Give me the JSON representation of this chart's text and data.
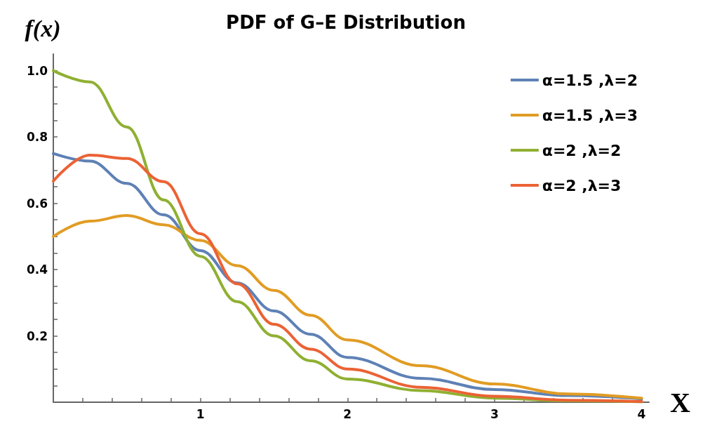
{
  "chart_data": {
    "type": "line",
    "title": "PDF of G–E Distribution",
    "xlabel": "X",
    "ylabel": "f(x)",
    "x": [
      0,
      0.25,
      0.5,
      0.75,
      1,
      1.25,
      1.5,
      1.75,
      2,
      2.5,
      3,
      3.5,
      4
    ],
    "series": [
      {
        "name": "α=1.5 ,λ=2",
        "color": "#5e81b5",
        "values": [
          0.75,
          0.727,
          0.66,
          0.565,
          0.457,
          0.36,
          0.275,
          0.205,
          0.135,
          0.072,
          0.038,
          0.02,
          0.01
        ]
      },
      {
        "name": "α=1.5 ,λ=3",
        "color": "#e19c24",
        "values": [
          0.5,
          0.546,
          0.563,
          0.535,
          0.488,
          0.412,
          0.337,
          0.262,
          0.188,
          0.11,
          0.055,
          0.025,
          0.012
        ]
      },
      {
        "name": "α=2 ,λ=2",
        "color": "#8fb032",
        "values": [
          1.0,
          0.966,
          0.83,
          0.61,
          0.44,
          0.303,
          0.2,
          0.125,
          0.07,
          0.035,
          0.012,
          0.004,
          0.001
        ]
      },
      {
        "name": "α=2 ,λ=3",
        "color": "#eb6235",
        "values": [
          0.667,
          0.745,
          0.735,
          0.665,
          0.508,
          0.357,
          0.235,
          0.16,
          0.1,
          0.045,
          0.018,
          0.006,
          0.002
        ]
      }
    ],
    "xlim": [
      0,
      4.05
    ],
    "xticks": [
      {
        "value": 0.2,
        "label": null
      },
      {
        "value": 0.4,
        "label": null
      },
      {
        "value": 0.6,
        "label": null
      },
      {
        "value": 0.8,
        "label": null
      },
      1,
      {
        "value": 1.2,
        "label": null
      },
      {
        "value": 1.4,
        "label": null
      },
      {
        "value": 1.6,
        "label": null
      },
      {
        "value": 1.8,
        "label": null
      },
      2,
      {
        "value": 2.2,
        "label": null
      },
      {
        "value": 2.4,
        "label": null
      },
      {
        "value": 2.6,
        "label": null
      },
      {
        "value": 2.8,
        "label": null
      },
      3,
      {
        "value": 3.2,
        "label": null
      },
      {
        "value": 3.4,
        "label": null
      },
      {
        "value": 3.6,
        "label": null
      },
      {
        "value": 3.8,
        "label": null
      },
      4
    ],
    "ylim": [
      0,
      1.05
    ],
    "yticks": [
      {
        "value": 0.05,
        "label": null
      },
      {
        "value": 0.1,
        "label": null
      },
      {
        "value": 0.15,
        "label": null
      },
      0.2,
      {
        "value": 0.25,
        "label": null
      },
      {
        "value": 0.3,
        "label": null
      },
      {
        "value": 0.35,
        "label": null
      },
      0.4,
      {
        "value": 0.45,
        "label": null
      },
      {
        "value": 0.5,
        "label": null
      },
      {
        "value": 0.55,
        "label": null
      },
      0.6,
      {
        "value": 0.65,
        "label": null
      },
      {
        "value": 0.7,
        "label": null
      },
      {
        "value": 0.75,
        "label": null
      },
      0.8,
      {
        "value": 0.85,
        "label": null
      },
      {
        "value": 0.9,
        "label": null
      },
      {
        "value": 0.95,
        "label": null
      },
      {
        "value": 1,
        "label": "1.0"
      }
    ],
    "legend": "top right",
    "marker": "none",
    "line_style": "solid"
  }
}
